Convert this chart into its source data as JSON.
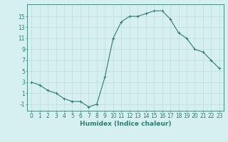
{
  "x": [
    0,
    1,
    2,
    3,
    4,
    5,
    6,
    7,
    8,
    9,
    10,
    11,
    12,
    13,
    14,
    15,
    16,
    17,
    18,
    19,
    20,
    21,
    22,
    23
  ],
  "y": [
    3,
    2.5,
    1.5,
    1,
    0,
    -0.5,
    -0.5,
    -1.5,
    -1,
    4,
    11,
    14,
    15,
    15,
    15.5,
    16,
    16,
    14.5,
    12,
    11,
    9,
    8.5,
    7,
    5.5
  ],
  "line_color": "#2e7d6e",
  "marker": "+",
  "marker_color": "#2e7d6e",
  "bg_color": "#d6eff0",
  "grid_color": "#b8d8da",
  "xlabel": "Humidex (Indice chaleur)",
  "ylabel": "",
  "xlim": [
    -0.5,
    23.5
  ],
  "ylim": [
    -2.2,
    17.2
  ],
  "yticks": [
    -1,
    1,
    3,
    5,
    7,
    9,
    11,
    13,
    15
  ],
  "xticks": [
    0,
    1,
    2,
    3,
    4,
    5,
    6,
    7,
    8,
    9,
    10,
    11,
    12,
    13,
    14,
    15,
    16,
    17,
    18,
    19,
    20,
    21,
    22,
    23
  ],
  "xlabel_fontsize": 6.5,
  "tick_fontsize": 5.5,
  "spine_color": "#2e7d6e",
  "linewidth": 0.8,
  "markersize": 3.5,
  "markeredgewidth": 0.7
}
